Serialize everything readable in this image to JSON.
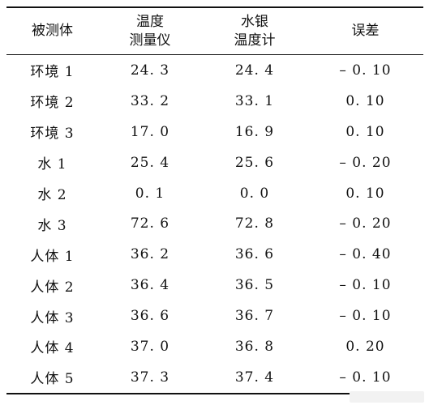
{
  "table": {
    "header": [
      [
        "被测体",
        ""
      ],
      [
        "温度",
        "测量仪"
      ],
      [
        "水银",
        "温度计"
      ],
      [
        "误差",
        ""
      ]
    ],
    "rows": [
      [
        "环境 1",
        "24. 3",
        "24. 4",
        "– 0. 10"
      ],
      [
        "环境 2",
        "33. 2",
        "33. 1",
        "0. 10"
      ],
      [
        "环境 3",
        "17. 0",
        "16. 9",
        "0. 10"
      ],
      [
        "水 1",
        "25. 4",
        "25. 6",
        "– 0. 20"
      ],
      [
        "水 2",
        "0. 1",
        "0. 0",
        "0. 10"
      ],
      [
        "水 3",
        "72. 6",
        "72. 8",
        "– 0. 20"
      ],
      [
        "人体 1",
        "36. 2",
        "36. 6",
        "– 0. 40"
      ],
      [
        "人体 2",
        "36. 4",
        "36. 5",
        "– 0. 10"
      ],
      [
        "人体 3",
        "36. 6",
        "36. 7",
        "– 0. 10"
      ],
      [
        "人体 4",
        "37. 0",
        "36. 8",
        "0. 20"
      ],
      [
        "人体 5",
        "37. 3",
        "37. 4",
        "– 0. 10"
      ]
    ]
  }
}
